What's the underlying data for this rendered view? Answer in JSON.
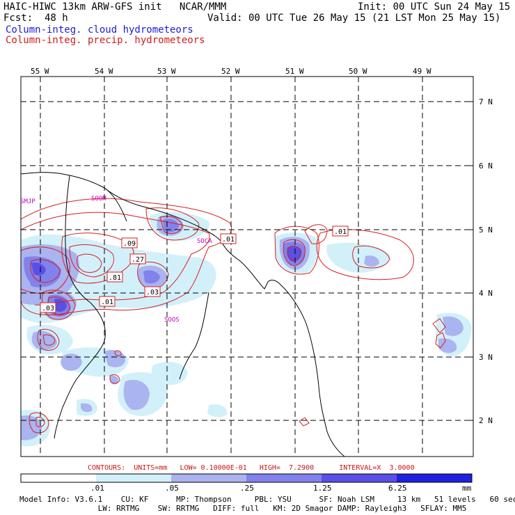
{
  "header": {
    "line1_left": "HAIC-HIWC 13km ARW-GFS init   NCAR/MMM",
    "line1_right": "Init: 00 UTC Sun 24 May 15",
    "fcst_label": "Fcst:",
    "fcst_value": "48 h",
    "valid": "Valid: 00 UTC Tue 26 May 15 (21 LST Mon 25 May 15)",
    "field1": "Column-integ. cloud hydrometeors",
    "field2": "Column-integ. precip. hydrometeors"
  },
  "map": {
    "lon_labels": [
      "55 W",
      "54 W",
      "53 W",
      "52 W",
      "51 W",
      "50 W",
      "49 W"
    ],
    "lat_labels": [
      "7 N",
      "6 N",
      "5 N",
      "4 N",
      "3 N",
      "2 N"
    ],
    "stations": [
      "SMJP",
      "SOCA",
      "SOOS"
    ],
    "station_partial": "SOOM",
    "contour_labels": [
      ".09",
      ".27",
      ".81",
      ".03",
      ".01",
      ".03",
      ".01",
      ".01"
    ],
    "colors": {
      "blue1": "#d2f0fa",
      "blue2": "#aab4f0",
      "blue3": "#8282ec",
      "blue4": "#5a50e6",
      "contour": "#d81e1e",
      "station": "#c000c0"
    }
  },
  "legend": {
    "contours": "CONTOURS:  UNITS=mm   LOW= 0.10000E-01   HIGH=  7.2900      INTERVAL=X  3.0000",
    "scale_values": [
      ".01",
      ".05",
      ".25",
      "1.25",
      "6.25",
      "mm"
    ],
    "scale_colors": [
      "#ffffff",
      "#d2f0fa",
      "#aab4f0",
      "#8282ec",
      "#5a50e6",
      "#2020e0"
    ]
  },
  "model_info": {
    "line1": "Model Info: V3.6.1    CU: KF      MP: Thompson     PBL: YSU      SF: Noah LSM     13 km   51 levels   60 sec",
    "line2": "                 LW: RRTMG    SW: RRTMG   DIFF: full   KM: 2D Smagor DAMP: Rayleigh3   SFLAY: MM5"
  }
}
